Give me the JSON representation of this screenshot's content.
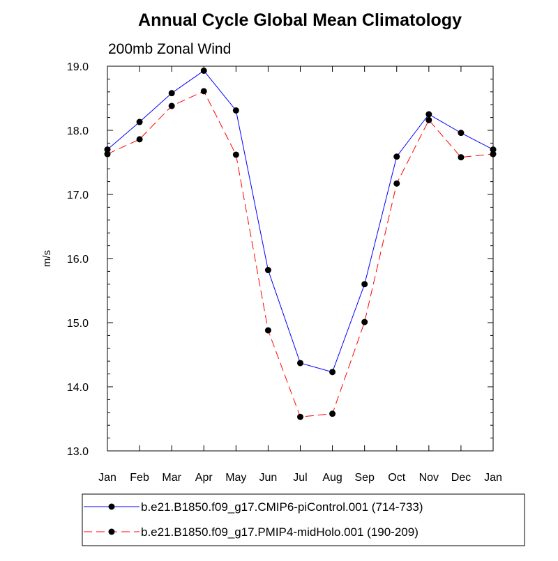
{
  "chart_data": {
    "type": "line",
    "title": "Annual Cycle Global Mean Climatology",
    "subtitle": "200mb Zonal Wind",
    "xlabel": "",
    "ylabel": "m/s",
    "ylim": [
      13.0,
      19.0
    ],
    "yticks": [
      "13.0",
      "14.0",
      "15.0",
      "16.0",
      "17.0",
      "18.0",
      "19.0"
    ],
    "categories": [
      "Jan",
      "Feb",
      "Mar",
      "Apr",
      "May",
      "Jun",
      "Jul",
      "Aug",
      "Sep",
      "Oct",
      "Nov",
      "Dec",
      "Jan"
    ],
    "grid": false,
    "legend_position": "bottom",
    "series": [
      {
        "name": "b.e21.B1850.f09_g17.CMIP6-piControl.001 (714-733)",
        "color": "#0000ff",
        "line_style": "solid",
        "marker": "filled-circle",
        "values": [
          17.7,
          18.13,
          18.58,
          18.93,
          18.31,
          15.82,
          14.37,
          14.23,
          15.6,
          17.59,
          18.25,
          17.96,
          17.7
        ]
      },
      {
        "name": "b.e21.B1850.f09_g17.PMIP4-midHolo.001 (190-209)",
        "color": "#ff0000",
        "line_style": "dashed",
        "marker": "filled-circle",
        "values": [
          17.63,
          17.86,
          18.38,
          18.61,
          17.62,
          14.88,
          13.53,
          13.58,
          15.01,
          17.17,
          18.16,
          17.58,
          17.63
        ]
      }
    ]
  }
}
